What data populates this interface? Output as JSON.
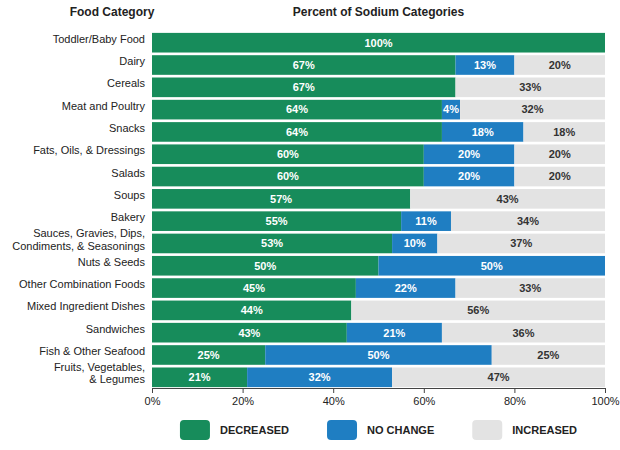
{
  "chart_data": {
    "type": "bar",
    "orientation": "horizontal",
    "stacked": true,
    "data_labels": true,
    "grid": false,
    "legend": "bottom",
    "title": "Percent of Sodium Categories",
    "y_label": "Food Category",
    "categories": [
      "Toddler/Baby Food",
      "Dairy",
      "Cereals",
      "Meat and Poultry",
      "Snacks",
      "Fats, Oils, & Dressings",
      "Salads",
      "Soups",
      "Bakery",
      "Sauces, Gravies, Dips,\nCondiments, & Seasonings",
      "Nuts & Seeds",
      "Other Combination Foods",
      "Mixed Ingredient Dishes",
      "Sandwiches",
      "Fish & Other Seafood",
      "Fruits, Vegetables,\n& Legumes"
    ],
    "series": [
      {
        "name": "DECREASED",
        "color": "#178c5b",
        "values": [
          100,
          67,
          67,
          64,
          64,
          60,
          60,
          57,
          55,
          53,
          50,
          45,
          44,
          43,
          25,
          21
        ],
        "value_labels": [
          "100%",
          "67%",
          "67%",
          "64%",
          "64%",
          "60%",
          "60%",
          "57%",
          "55%",
          "53%",
          "50%",
          "45%",
          "44%",
          "43%",
          "25%",
          "21%"
        ]
      },
      {
        "name": "NO CHANGE",
        "color": "#1f7ec2",
        "values": [
          null,
          13,
          null,
          4,
          18,
          20,
          20,
          null,
          11,
          10,
          50,
          22,
          null,
          21,
          50,
          32
        ],
        "value_labels": [
          null,
          "13%",
          null,
          "4%",
          "18%",
          "20%",
          "20%",
          null,
          "11%",
          "10%",
          "50%",
          "22%",
          null,
          "21%",
          "50%",
          "32%"
        ]
      },
      {
        "name": "INCREASED",
        "color": "#e3e3e3",
        "values": [
          null,
          20,
          33,
          32,
          18,
          20,
          20,
          43,
          34,
          37,
          null,
          33,
          56,
          36,
          25,
          47
        ],
        "value_labels": [
          null,
          "20%",
          "33%",
          "32%",
          "18%",
          "20%",
          "20%",
          "43%",
          "34%",
          "37%",
          null,
          "33%",
          "56%",
          "36%",
          "25%",
          "47%"
        ]
      }
    ],
    "xlim": [
      0,
      100
    ],
    "xticks": [
      {
        "value": 0,
        "label": "0%"
      },
      {
        "value": 20,
        "label": "20%"
      },
      {
        "value": 40,
        "label": "40%"
      },
      {
        "value": 60,
        "label": "60%"
      },
      {
        "value": 80,
        "label": "80%"
      },
      {
        "value": 100,
        "label": "100%"
      }
    ]
  }
}
